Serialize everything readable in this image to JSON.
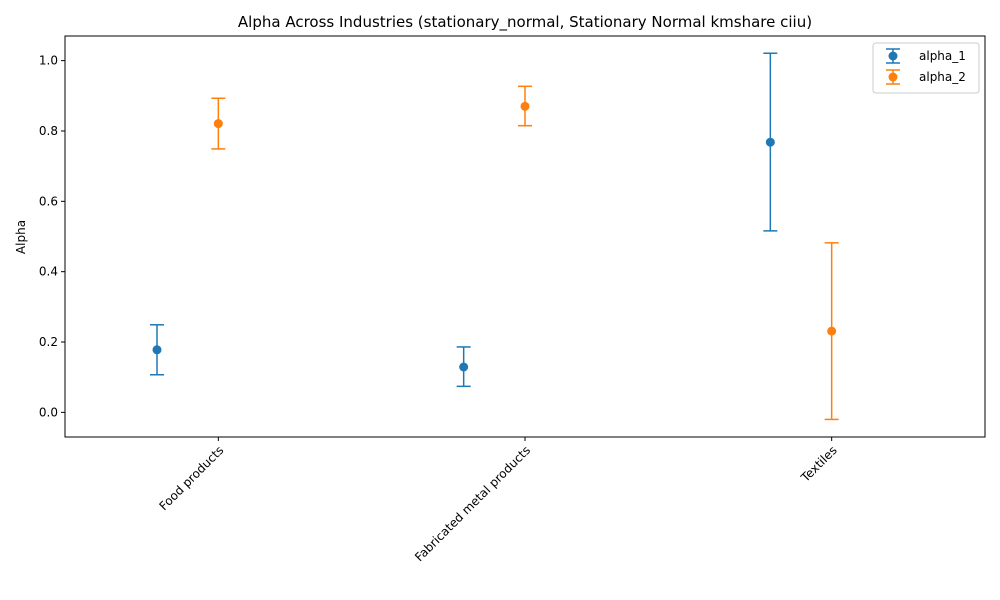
{
  "chart_data": {
    "type": "errorbar",
    "title": "Alpha Across Industries (stationary_normal, Stationary Normal kmshare ciiu)",
    "xlabel": "",
    "ylabel": "Alpha",
    "categories": [
      "Food products",
      "Fabricated metal products",
      "Textiles"
    ],
    "ylim": [
      -0.07,
      1.07
    ],
    "yticks": [
      "0.0",
      "0.2",
      "0.4",
      "0.6",
      "0.8",
      "1.0"
    ],
    "grid": false,
    "legend_position": "top-right",
    "series": [
      {
        "name": "alpha_1",
        "color": "#1f77b4",
        "values": [
          0.178,
          0.129,
          0.768
        ],
        "lower": [
          0.107,
          0.074,
          0.516
        ],
        "upper": [
          0.249,
          0.186,
          1.021
        ]
      },
      {
        "name": "alpha_2",
        "color": "#ff7f0e",
        "values": [
          0.821,
          0.87,
          0.231
        ],
        "lower": [
          0.749,
          0.815,
          -0.02
        ],
        "upper": [
          0.893,
          0.927,
          0.482
        ]
      }
    ]
  }
}
